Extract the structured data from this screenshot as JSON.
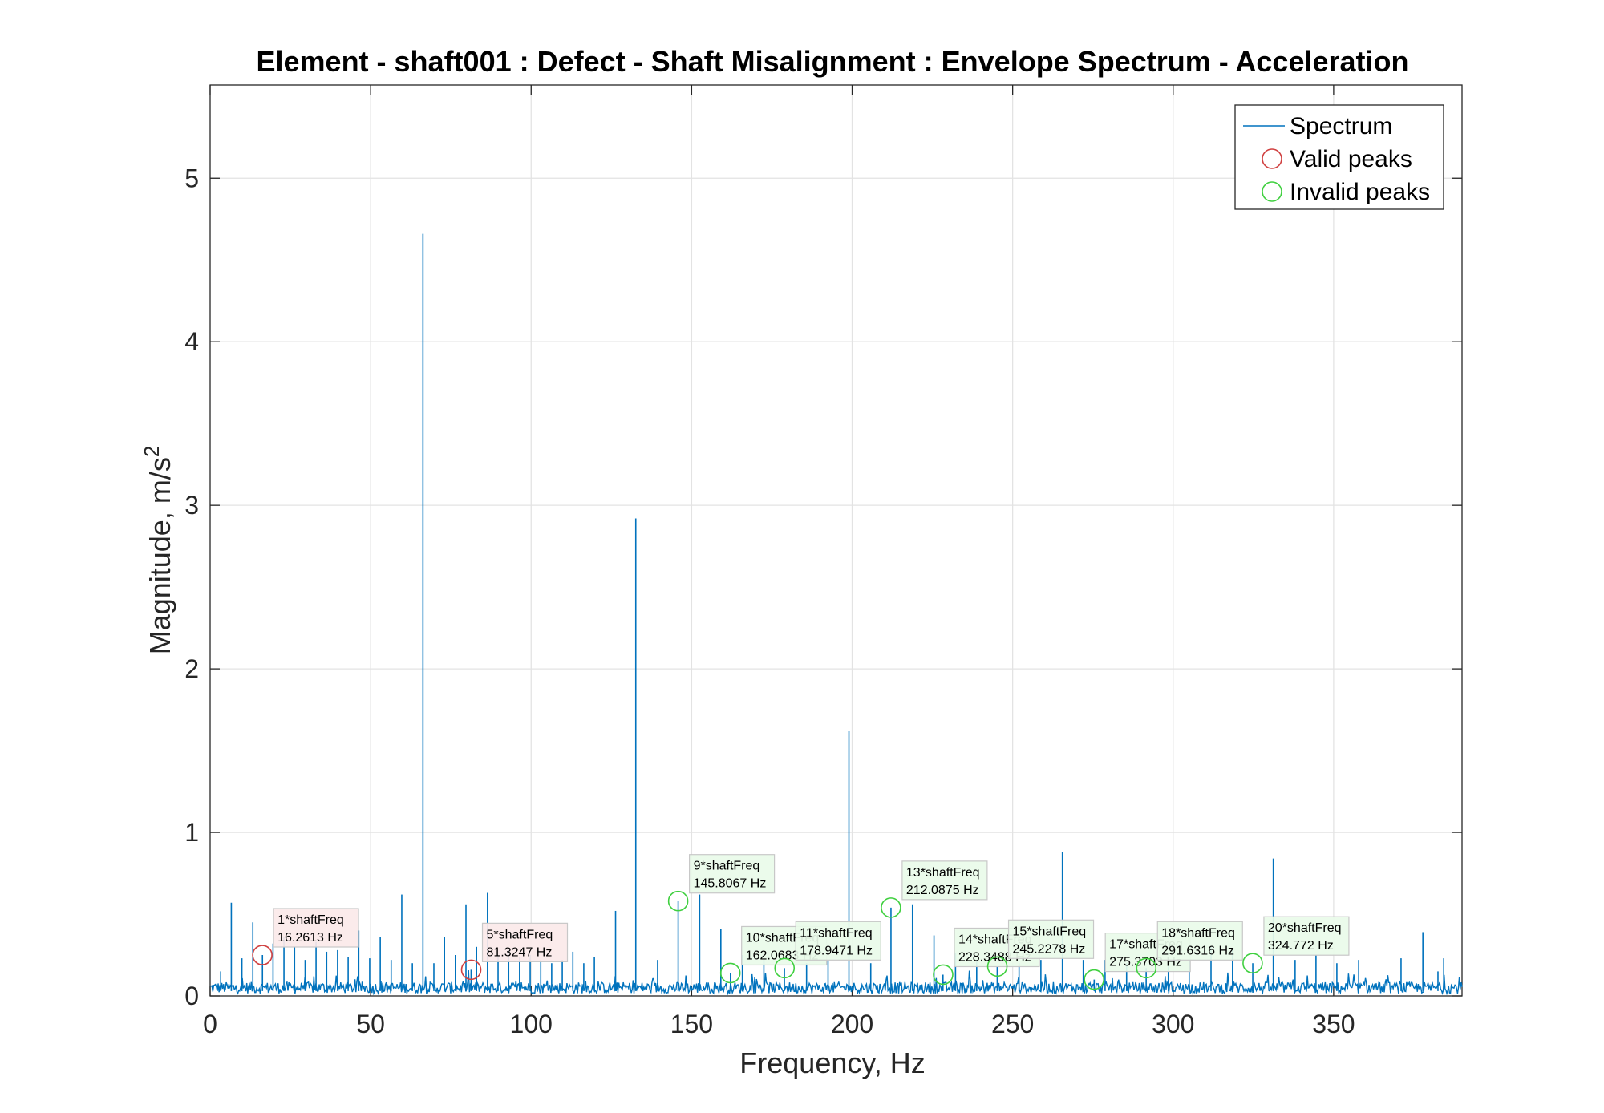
{
  "chart_data": {
    "type": "line",
    "title": "Element - shaft001 : Defect - Shaft Misalignment : Envelope Spectrum - Acceleration",
    "xlabel": "Frequency, Hz",
    "ylabel_main": "Magnitude, m/s",
    "ylabel_sup": "2",
    "xlim": [
      0,
      390
    ],
    "ylim": [
      0,
      5.57
    ],
    "xticks": [
      0,
      50,
      100,
      150,
      200,
      250,
      300,
      350
    ],
    "yticks": [
      0,
      1,
      2,
      3,
      4,
      5
    ],
    "grid": true,
    "legend_position": "top-right",
    "colors": {
      "spectrum": "#0072BD",
      "valid": "#D04040",
      "invalid": "#40D040",
      "valid_label_bg": "#FBE9E9",
      "invalid_label_bg": "#E9FBE9"
    },
    "legend": [
      {
        "label": "Spectrum",
        "marker": "line"
      },
      {
        "label": "Valid peaks",
        "marker": "circle-red"
      },
      {
        "label": "Invalid peaks",
        "marker": "circle-green"
      }
    ],
    "noise_level": 0.05,
    "spectrum_peaks": [
      {
        "x": 3.3,
        "y": 0.15
      },
      {
        "x": 6.6,
        "y": 0.57
      },
      {
        "x": 9.9,
        "y": 0.23
      },
      {
        "x": 13.3,
        "y": 0.45
      },
      {
        "x": 16.3,
        "y": 0.25
      },
      {
        "x": 19.6,
        "y": 0.32
      },
      {
        "x": 23.0,
        "y": 0.36
      },
      {
        "x": 26.3,
        "y": 0.3
      },
      {
        "x": 29.6,
        "y": 0.22
      },
      {
        "x": 33.0,
        "y": 0.33
      },
      {
        "x": 36.3,
        "y": 0.27
      },
      {
        "x": 39.7,
        "y": 0.28
      },
      {
        "x": 43.0,
        "y": 0.24
      },
      {
        "x": 46.3,
        "y": 0.4
      },
      {
        "x": 49.7,
        "y": 0.23
      },
      {
        "x": 53.0,
        "y": 0.36
      },
      {
        "x": 56.4,
        "y": 0.22
      },
      {
        "x": 59.7,
        "y": 0.62
      },
      {
        "x": 63.0,
        "y": 0.2
      },
      {
        "x": 66.3,
        "y": 4.66
      },
      {
        "x": 69.7,
        "y": 0.2
      },
      {
        "x": 73.0,
        "y": 0.36
      },
      {
        "x": 76.4,
        "y": 0.25
      },
      {
        "x": 79.7,
        "y": 0.56
      },
      {
        "x": 81.3,
        "y": 0.16
      },
      {
        "x": 83.0,
        "y": 0.3
      },
      {
        "x": 86.4,
        "y": 0.63
      },
      {
        "x": 89.7,
        "y": 0.25
      },
      {
        "x": 93.0,
        "y": 0.28
      },
      {
        "x": 96.4,
        "y": 0.24
      },
      {
        "x": 99.7,
        "y": 0.25
      },
      {
        "x": 103.0,
        "y": 0.22
      },
      {
        "x": 106.4,
        "y": 0.2
      },
      {
        "x": 109.7,
        "y": 0.22
      },
      {
        "x": 113.0,
        "y": 0.27
      },
      {
        "x": 116.4,
        "y": 0.2
      },
      {
        "x": 119.7,
        "y": 0.24
      },
      {
        "x": 126.3,
        "y": 0.52
      },
      {
        "x": 132.6,
        "y": 2.92
      },
      {
        "x": 139.4,
        "y": 0.22
      },
      {
        "x": 145.8,
        "y": 0.58
      },
      {
        "x": 152.5,
        "y": 0.62
      },
      {
        "x": 159.1,
        "y": 0.41
      },
      {
        "x": 162.1,
        "y": 0.14
      },
      {
        "x": 165.8,
        "y": 0.25
      },
      {
        "x": 172.5,
        "y": 0.22
      },
      {
        "x": 178.9,
        "y": 0.17
      },
      {
        "x": 185.8,
        "y": 0.2
      },
      {
        "x": 192.5,
        "y": 0.22
      },
      {
        "x": 199.0,
        "y": 1.62
      },
      {
        "x": 205.8,
        "y": 0.2
      },
      {
        "x": 212.1,
        "y": 0.54
      },
      {
        "x": 218.8,
        "y": 0.56
      },
      {
        "x": 225.5,
        "y": 0.37
      },
      {
        "x": 228.3,
        "y": 0.13
      },
      {
        "x": 232.2,
        "y": 0.26
      },
      {
        "x": 238.8,
        "y": 0.22
      },
      {
        "x": 245.2,
        "y": 0.18
      },
      {
        "x": 252.0,
        "y": 0.2
      },
      {
        "x": 258.8,
        "y": 0.22
      },
      {
        "x": 265.5,
        "y": 0.88
      },
      {
        "x": 272.0,
        "y": 0.22
      },
      {
        "x": 275.4,
        "y": 0.1
      },
      {
        "x": 278.8,
        "y": 0.22
      },
      {
        "x": 285.5,
        "y": 0.2
      },
      {
        "x": 291.6,
        "y": 0.17
      },
      {
        "x": 298.5,
        "y": 0.33
      },
      {
        "x": 305.0,
        "y": 0.22
      },
      {
        "x": 311.8,
        "y": 0.3
      },
      {
        "x": 318.5,
        "y": 0.28
      },
      {
        "x": 324.8,
        "y": 0.2
      },
      {
        "x": 331.2,
        "y": 0.84
      },
      {
        "x": 338.0,
        "y": 0.22
      },
      {
        "x": 344.5,
        "y": 0.25
      },
      {
        "x": 351.0,
        "y": 0.2
      },
      {
        "x": 357.8,
        "y": 0.22
      },
      {
        "x": 371.0,
        "y": 0.23
      },
      {
        "x": 377.8,
        "y": 0.39
      },
      {
        "x": 382.5,
        "y": 0.15
      },
      {
        "x": 384.3,
        "y": 0.23
      }
    ],
    "annotations": [
      {
        "line1": "1*shaftFreq",
        "line2": "16.2613 Hz",
        "x": 16.2613,
        "y": 0.25,
        "valid": true
      },
      {
        "line1": "5*shaftFreq",
        "line2": "81.3247 Hz",
        "x": 81.3247,
        "y": 0.16,
        "valid": true
      },
      {
        "line1": "9*shaftFreq",
        "line2": "145.8067 Hz",
        "x": 145.8067,
        "y": 0.58,
        "valid": false
      },
      {
        "line1": "10*shaftFreq",
        "line2": "162.0683 Hz",
        "x": 162.0683,
        "y": 0.14,
        "valid": false
      },
      {
        "line1": "11*shaftFreq",
        "line2": "178.9471 Hz",
        "x": 178.9471,
        "y": 0.17,
        "valid": false
      },
      {
        "line1": "13*shaftFreq",
        "line2": "212.0875 Hz",
        "x": 212.0875,
        "y": 0.54,
        "valid": false
      },
      {
        "line1": "14*shaftFreq",
        "line2": "228.3488 Hz",
        "x": 228.3488,
        "y": 0.13,
        "valid": false
      },
      {
        "line1": "15*shaftFreq",
        "line2": "245.2278 Hz",
        "x": 245.2278,
        "y": 0.18,
        "valid": false
      },
      {
        "line1": "17*shaftFreq",
        "line2": "275.3703 Hz",
        "x": 275.3703,
        "y": 0.1,
        "valid": false
      },
      {
        "line1": "18*shaftFreq",
        "line2": "291.6316 Hz",
        "x": 291.6316,
        "y": 0.17,
        "valid": false
      },
      {
        "line1": "20*shaftFreq",
        "line2": "324.772 Hz",
        "x": 324.772,
        "y": 0.2,
        "valid": false
      }
    ]
  }
}
